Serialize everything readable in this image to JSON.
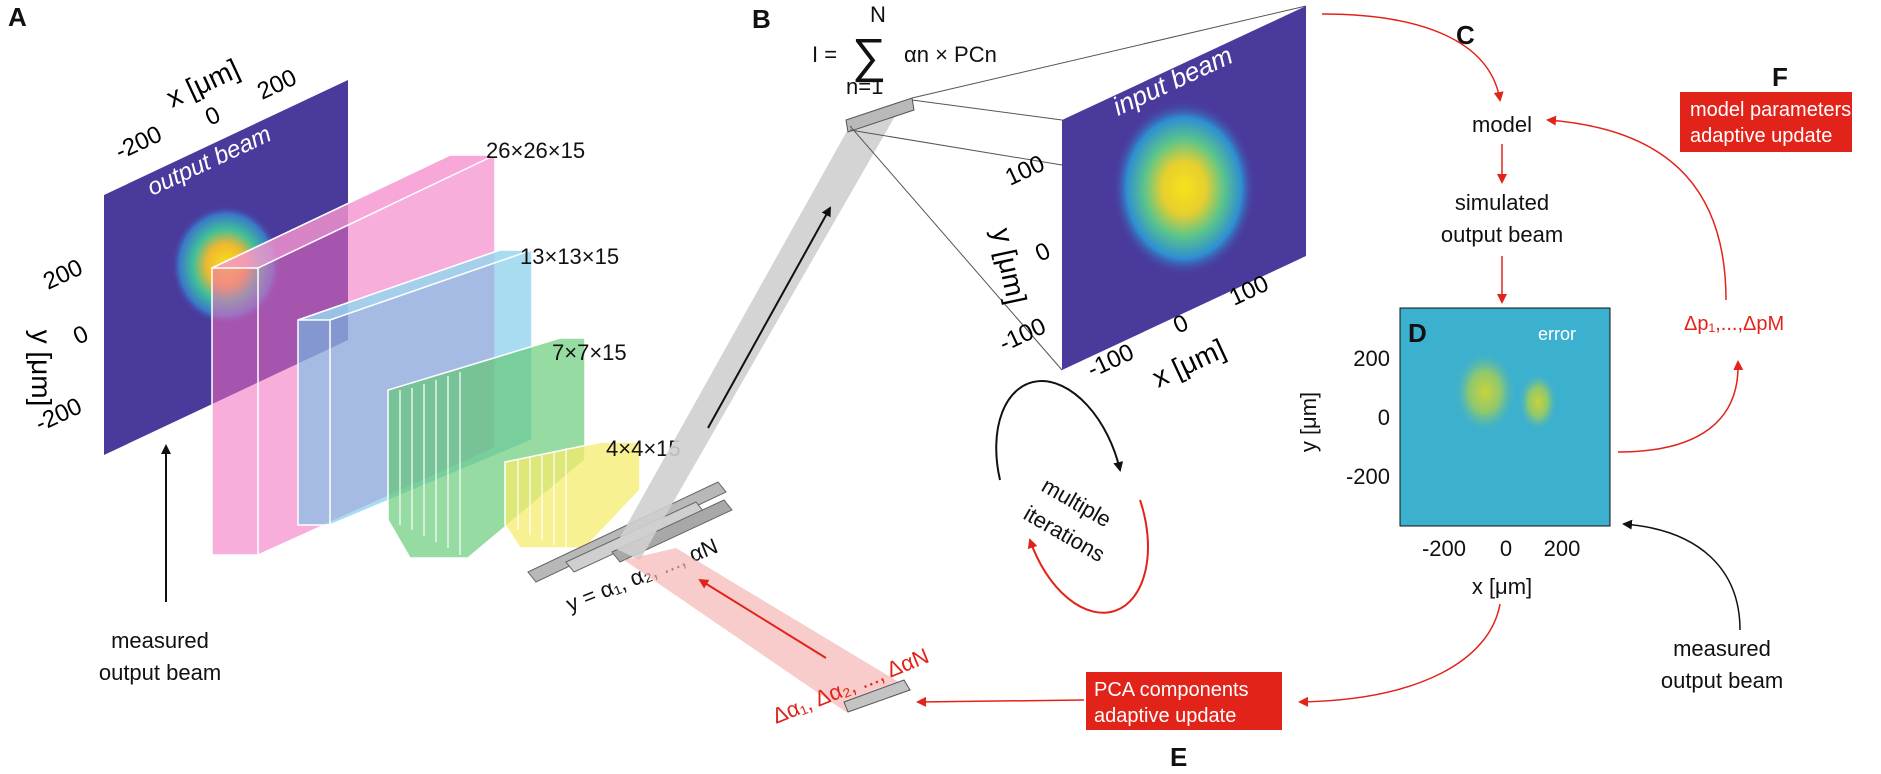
{
  "panels": {
    "a": "A",
    "b": "B",
    "c": "C",
    "d": "D",
    "e": "E",
    "f": "F"
  },
  "panel_a": {
    "beam_title": "output beam",
    "x_axis_label": "x [μm]",
    "x_ticks": [
      "-200",
      "0",
      "200"
    ],
    "y_axis_label": "y [μm]",
    "y_ticks": [
      "200",
      "0",
      "-200"
    ],
    "layers": [
      "26×26×15",
      "13×13×15",
      "7×7×15",
      "4×4×15"
    ],
    "measured_label_line1": "measured",
    "measured_label_line2": "output beam",
    "output_vector": "y = α₁, α₂, ..., αN"
  },
  "panel_b": {
    "equation_lhs": "I =",
    "sum_top": "N",
    "sum_bottom": "n=1",
    "sum_term": "αn × PCn",
    "beam_title": "input beam",
    "y_axis_label": "y [μm]",
    "y_ticks": [
      "100",
      "0",
      "-100"
    ],
    "x_axis_label": "x [μm]",
    "x_ticks": [
      "-100",
      "0",
      "100"
    ]
  },
  "iterations": {
    "line1": "multiple",
    "line2": "iterations"
  },
  "flow": {
    "model": "model",
    "simulated_line1": "simulated",
    "simulated_line2": "output beam",
    "measured_line1": "measured",
    "measured_line2": "output beam",
    "delta_p": "Δp₁,...,ΔpM"
  },
  "panel_d": {
    "title": "error",
    "x_axis_label": "x [μm]",
    "x_ticks": [
      "-200",
      "0",
      "200"
    ],
    "y_axis_label": "y [μm]",
    "y_ticks": [
      "200",
      "0",
      "-200"
    ]
  },
  "panel_e": {
    "box_line1": "PCA components",
    "box_line2": "adaptive update",
    "delta_alpha": "Δα₁, Δα₂, ..., ΔαN"
  },
  "panel_f": {
    "box_line1": "model parameters",
    "box_line2": "adaptive update"
  },
  "colors": {
    "accent_red": "#e2231a",
    "beam_bg": "#4a3a9c",
    "error_bg": "#3cb0cf"
  }
}
